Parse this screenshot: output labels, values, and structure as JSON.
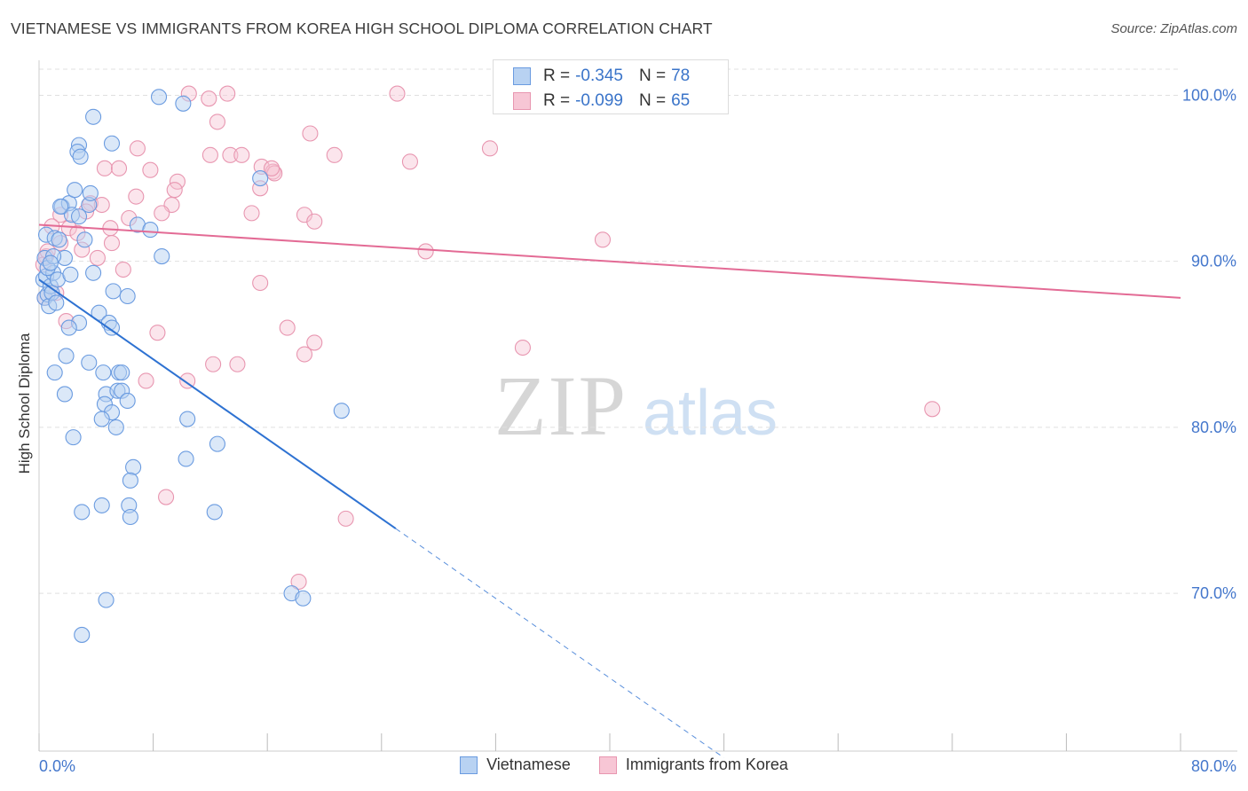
{
  "title": "VIETNAMESE VS IMMIGRANTS FROM KOREA HIGH SCHOOL DIPLOMA CORRELATION CHART",
  "source": "Source: ZipAtlas.com",
  "watermark": {
    "zip": "ZIP",
    "atlas": "atlas"
  },
  "legend": {
    "rows": [
      {
        "r_label": "R =",
        "r_value": "-0.345",
        "n_label": "N =",
        "n_value": "78"
      },
      {
        "r_label": "R =",
        "r_value": "-0.099",
        "n_label": "N =",
        "n_value": "65"
      }
    ]
  },
  "bottom_legend": {
    "series1": "Vietnamese",
    "series2": "Immigrants from Korea"
  },
  "colors": {
    "blue_fill": "#b8d2f2",
    "blue_stroke": "#6a9be0",
    "blue_line": "#2e72d2",
    "pink_fill": "#f7c6d5",
    "pink_stroke": "#e896b0",
    "pink_line": "#e36b95",
    "tick_label": "#4477cc",
    "grid": "#e0e0e0"
  },
  "chart_data": {
    "type": "scatter",
    "title": "VIETNAMESE VS IMMIGRANTS FROM KOREA HIGH SCHOOL DIPLOMA CORRELATION CHART",
    "xlabel": "",
    "ylabel": "High School Diploma",
    "xlim": [
      0,
      80
    ],
    "ylim": [
      60.5,
      102
    ],
    "x_ticks": [
      0,
      8,
      16,
      24,
      32,
      40,
      48,
      56,
      64,
      72,
      80
    ],
    "x_tick_labels": {
      "left": "0.0%",
      "right": "80.0%"
    },
    "y_ticks": [
      70,
      80,
      90,
      100
    ],
    "y_tick_labels": [
      "70.0%",
      "80.0%",
      "90.0%",
      "100.0%"
    ],
    "series": [
      {
        "name": "Vietnamese",
        "r": -0.345,
        "n": 78,
        "trend": {
          "x0": 0,
          "y0": 88.9,
          "x1": 25,
          "y1": 73.9,
          "dash_to_x": 48
        },
        "points": [
          [
            0.3,
            88.9
          ],
          [
            0.4,
            87.8
          ],
          [
            0.5,
            89.1
          ],
          [
            0.6,
            88.0
          ],
          [
            0.7,
            87.3
          ],
          [
            0.8,
            88.5
          ],
          [
            0.9,
            88.1
          ],
          [
            1.0,
            89.3
          ],
          [
            1.2,
            87.5
          ],
          [
            1.3,
            88.9
          ],
          [
            0.4,
            90.2
          ],
          [
            0.5,
            91.6
          ],
          [
            1.1,
            91.4
          ],
          [
            1.4,
            91.3
          ],
          [
            1.8,
            90.2
          ],
          [
            2.2,
            89.2
          ],
          [
            0.6,
            89.6
          ],
          [
            1.0,
            90.3
          ],
          [
            1.6,
            93.3
          ],
          [
            2.1,
            93.5
          ],
          [
            2.5,
            94.3
          ],
          [
            2.3,
            92.8
          ],
          [
            3.5,
            93.4
          ],
          [
            3.6,
            94.1
          ],
          [
            2.8,
            97.0
          ],
          [
            2.7,
            96.6
          ],
          [
            2.9,
            96.3
          ],
          [
            5.1,
            97.1
          ],
          [
            3.8,
            98.7
          ],
          [
            6.9,
            92.2
          ],
          [
            7.8,
            91.9
          ],
          [
            8.6,
            90.3
          ],
          [
            3.8,
            89.3
          ],
          [
            5.2,
            88.2
          ],
          [
            6.2,
            87.9
          ],
          [
            4.2,
            86.9
          ],
          [
            4.9,
            86.3
          ],
          [
            5.1,
            86.0
          ],
          [
            2.8,
            86.3
          ],
          [
            2.1,
            86.0
          ],
          [
            1.9,
            84.3
          ],
          [
            1.1,
            83.3
          ],
          [
            3.5,
            83.9
          ],
          [
            4.5,
            83.3
          ],
          [
            5.6,
            83.3
          ],
          [
            5.8,
            83.3
          ],
          [
            4.7,
            82.0
          ],
          [
            5.5,
            82.2
          ],
          [
            5.8,
            82.2
          ],
          [
            6.2,
            81.6
          ],
          [
            4.6,
            81.4
          ],
          [
            5.1,
            80.9
          ],
          [
            4.4,
            80.5
          ],
          [
            5.4,
            80.0
          ],
          [
            1.8,
            82.0
          ],
          [
            2.4,
            79.4
          ],
          [
            10.4,
            80.5
          ],
          [
            12.5,
            79.0
          ],
          [
            10.3,
            78.1
          ],
          [
            6.6,
            77.6
          ],
          [
            6.4,
            76.8
          ],
          [
            6.3,
            75.3
          ],
          [
            6.4,
            74.6
          ],
          [
            4.4,
            75.3
          ],
          [
            3.0,
            74.9
          ],
          [
            12.3,
            74.9
          ],
          [
            4.7,
            69.6
          ],
          [
            3.0,
            67.5
          ],
          [
            17.7,
            70.0
          ],
          [
            18.5,
            69.7
          ],
          [
            21.2,
            81.0
          ],
          [
            15.5,
            95.0
          ],
          [
            8.4,
            99.9
          ],
          [
            10.1,
            99.5
          ],
          [
            3.2,
            91.3
          ],
          [
            2.8,
            92.7
          ],
          [
            1.5,
            93.3
          ],
          [
            0.8,
            89.9
          ]
        ]
      },
      {
        "name": "Immigrants from Korea",
        "r": -0.099,
        "n": 65,
        "trend": {
          "x0": 0,
          "y0": 92.2,
          "x1": 80,
          "y1": 87.8
        },
        "points": [
          [
            10.5,
            100.1
          ],
          [
            13.2,
            100.1
          ],
          [
            11.9,
            99.8
          ],
          [
            25.1,
            100.1
          ],
          [
            12.5,
            98.4
          ],
          [
            19.0,
            97.7
          ],
          [
            6.9,
            96.8
          ],
          [
            12.0,
            96.4
          ],
          [
            13.4,
            96.4
          ],
          [
            14.2,
            96.4
          ],
          [
            20.7,
            96.4
          ],
          [
            26.0,
            96.0
          ],
          [
            31.6,
            96.8
          ],
          [
            7.8,
            95.5
          ],
          [
            15.6,
            95.7
          ],
          [
            16.4,
            95.4
          ],
          [
            4.6,
            95.6
          ],
          [
            5.6,
            95.6
          ],
          [
            9.7,
            94.8
          ],
          [
            9.5,
            94.3
          ],
          [
            15.5,
            94.4
          ],
          [
            6.8,
            93.9
          ],
          [
            3.6,
            93.5
          ],
          [
            4.4,
            93.4
          ],
          [
            9.3,
            93.4
          ],
          [
            8.6,
            92.9
          ],
          [
            14.9,
            92.9
          ],
          [
            18.6,
            92.8
          ],
          [
            6.3,
            92.6
          ],
          [
            19.3,
            92.4
          ],
          [
            1.5,
            92.8
          ],
          [
            3.3,
            93.0
          ],
          [
            0.9,
            92.1
          ],
          [
            2.1,
            92.0
          ],
          [
            5.0,
            92.0
          ],
          [
            2.7,
            91.7
          ],
          [
            1.5,
            91.1
          ],
          [
            5.1,
            91.1
          ],
          [
            3.0,
            90.7
          ],
          [
            4.1,
            90.2
          ],
          [
            5.9,
            89.5
          ],
          [
            0.5,
            90.3
          ],
          [
            0.3,
            89.8
          ],
          [
            1.2,
            88.1
          ],
          [
            0.4,
            87.8
          ],
          [
            15.5,
            88.7
          ],
          [
            39.5,
            91.3
          ],
          [
            27.1,
            90.6
          ],
          [
            1.9,
            86.4
          ],
          [
            8.3,
            85.7
          ],
          [
            17.4,
            86.0
          ],
          [
            19.3,
            85.1
          ],
          [
            18.6,
            84.4
          ],
          [
            33.9,
            84.8
          ],
          [
            12.2,
            83.8
          ],
          [
            13.9,
            83.8
          ],
          [
            7.5,
            82.8
          ],
          [
            10.4,
            82.8
          ],
          [
            62.6,
            81.1
          ],
          [
            8.9,
            75.8
          ],
          [
            21.5,
            74.5
          ],
          [
            18.2,
            70.7
          ],
          [
            16.5,
            95.3
          ],
          [
            16.3,
            95.6
          ],
          [
            0.6,
            90.6
          ]
        ]
      }
    ]
  }
}
